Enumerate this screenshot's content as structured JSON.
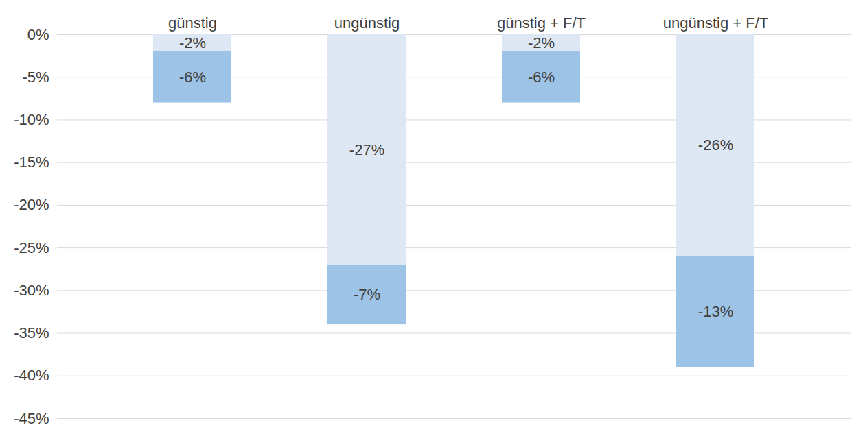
{
  "chart_data": {
    "type": "bar",
    "stacked": true,
    "data_labels": true,
    "grid": true,
    "categories": [
      "günstig",
      "ungünstig",
      "günstig + F/T",
      "ungünstig + F/T"
    ],
    "series": [
      {
        "color": "#dee8f5",
        "values": [
          -2,
          -27,
          -2,
          -26
        ],
        "value_labels": [
          "-2%",
          "-27%",
          "-2%",
          "-26%"
        ]
      },
      {
        "color": "#9dc3e6",
        "values": [
          -6,
          -7,
          -6,
          -13
        ],
        "value_labels": [
          "-6%",
          "-7%",
          "-6%",
          "-13%"
        ]
      }
    ],
    "ylim": [
      -45,
      0
    ],
    "yticks": [
      {
        "value": 0,
        "label": "0%"
      },
      {
        "value": -5,
        "label": "-5%"
      },
      {
        "value": -10,
        "label": "-10%"
      },
      {
        "value": -15,
        "label": "-15%"
      },
      {
        "value": -20,
        "label": "-20%"
      },
      {
        "value": -25,
        "label": "-25%"
      },
      {
        "value": -30,
        "label": "-30%"
      },
      {
        "value": -35,
        "label": "-35%"
      },
      {
        "value": -40,
        "label": "-40%"
      },
      {
        "value": -45,
        "label": "-45%"
      }
    ]
  }
}
